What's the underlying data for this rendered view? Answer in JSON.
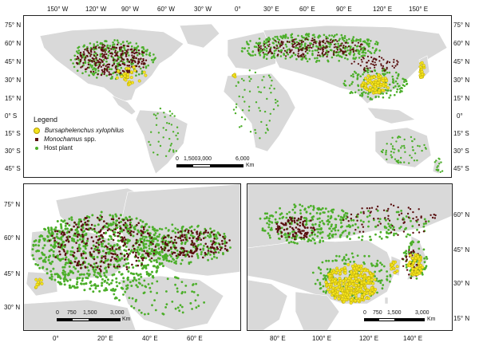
{
  "top_map": {
    "lon_labels": [
      "150° W",
      "120° W",
      "90° W",
      "60° W",
      "30° W",
      "0°",
      "30° E",
      "60° E",
      "90° E",
      "120° E",
      "150° E"
    ],
    "lat_labels_left": [
      "75° N",
      "60° N",
      "45° N",
      "30° N",
      "15° N",
      "0° S",
      "15° S",
      "30° S",
      "45° S"
    ],
    "lat_labels_right": [
      "75° N",
      "60° N",
      "45° N",
      "30° N",
      "15° N",
      "0°",
      "15° S",
      "30° S",
      "45° S"
    ],
    "scale": {
      "ticks": [
        "0",
        "1,5003,000",
        "6,000"
      ],
      "unit": "Km"
    }
  },
  "legend": {
    "title": "Legend",
    "items": [
      {
        "label": "Bursaphelenchus xylophilus",
        "color": "#f5e51e",
        "italic": true
      },
      {
        "label": "Monochamus spp.",
        "color": "#5a1010",
        "italic_part": "Monochamus",
        "rest": " spp."
      },
      {
        "label": "Host plant",
        "color": "#4caf2a",
        "italic": false
      }
    ]
  },
  "europe_map": {
    "lat_labels": [
      "75° N",
      "60° N",
      "45° N",
      "30° N"
    ],
    "lon_labels": [
      "0°",
      "20° E",
      "40° E",
      "60° E"
    ],
    "scale": {
      "ticks": [
        "0",
        "750",
        "1,500",
        "3,000"
      ],
      "unit": "Km"
    }
  },
  "asia_map": {
    "lat_labels": [
      "60° N",
      "45° N",
      "30° N",
      "15° N"
    ],
    "lon_labels": [
      "80° E",
      "100° E",
      "120° E",
      "140° E"
    ],
    "scale": {
      "ticks": [
        "0",
        "750",
        "1,500",
        "3,000"
      ],
      "unit": "Km"
    }
  },
  "colors": {
    "land": "#d9d9d9",
    "host": "#4caf2a",
    "monochamus": "#5a1010",
    "bursa": "#f5e51e",
    "bursa_edge": "#b09a00"
  }
}
